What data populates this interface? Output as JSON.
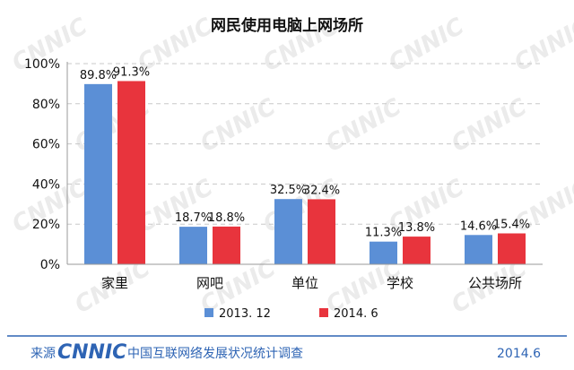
{
  "chart_data": {
    "type": "bar",
    "title": "网民使用电脑上网场所",
    "categories": [
      "家里",
      "网吧",
      "单位",
      "学校",
      "公共场所"
    ],
    "series": [
      {
        "name": "2013. 12",
        "color": "#5b8fd6",
        "values": [
          89.8,
          18.7,
          32.5,
          11.3,
          14.6
        ],
        "labels": [
          "89.8%",
          "18.7%",
          "32.5%",
          "11.3%",
          "14.6%"
        ]
      },
      {
        "name": "2014. 6",
        "color": "#e8343d",
        "values": [
          91.3,
          18.8,
          32.4,
          13.8,
          15.4
        ],
        "labels": [
          "91.3%",
          "18.8%",
          "32.4%",
          "13.8%",
          "15.4%"
        ]
      }
    ],
    "ylim": [
      0,
      100
    ],
    "yticks": [
      "0%",
      "20%",
      "40%",
      "60%",
      "80%",
      "100%"
    ],
    "grid": true,
    "legend_position": "bottom"
  },
  "footer": {
    "source_label": "来源",
    "logo_text": "CNNIC",
    "survey_title": "中国互联网络发展状况统计调查",
    "date": "2014.6"
  },
  "watermark_text": "CNNIC",
  "colors": {
    "rule": "#2e64b4",
    "grid": "#c8c8c8"
  }
}
